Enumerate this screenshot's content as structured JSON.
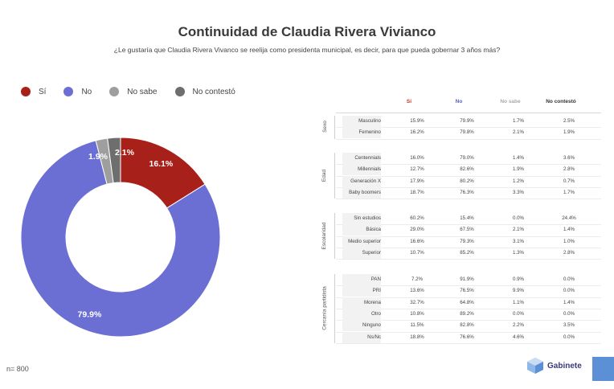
{
  "title": "Continuidad de Claudia Rivera Vivianco",
  "subtitle": "¿Le gustaría que Claudia Rivera Vivanco se reelija como presidenta municipal, es decir, para que pueda gobernar 3 años más?",
  "n_label": "n= 800",
  "logo_text": "Gabinete",
  "chart_data": [
    {
      "type": "pie",
      "donut": true,
      "legend_position": "top-left",
      "categories": [
        "Sí",
        "No",
        "No sabe",
        "No contestó"
      ],
      "values": [
        16.1,
        79.9,
        1.9,
        2.1
      ],
      "labels": [
        "16.1%",
        "79.9%",
        "1.9%",
        "2.1%"
      ],
      "colors": [
        "#a8201a",
        "#6b6fd4",
        "#9e9e9e",
        "#6e6e6e"
      ]
    },
    {
      "type": "table",
      "columns": [
        "Sí",
        "No",
        "No sabe",
        "No contestó"
      ],
      "column_colors": [
        "#c0392b",
        "#5b5fc7",
        "#aaaaaa",
        "#333333"
      ],
      "groups": [
        {
          "label": "Sexo",
          "rows": [
            {
              "name": "Masculino",
              "values": [
                "15.9%",
                "79.9%",
                "1.7%",
                "2.5%"
              ]
            },
            {
              "name": "Femenino",
              "values": [
                "16.2%",
                "79.8%",
                "2.1%",
                "1.9%"
              ]
            }
          ]
        },
        {
          "label": "Edad",
          "rows": [
            {
              "name": "Centennials",
              "values": [
                "16.0%",
                "79.0%",
                "1.4%",
                "3.6%"
              ]
            },
            {
              "name": "Millennials",
              "values": [
                "12.7%",
                "82.6%",
                "1.9%",
                "2.8%"
              ]
            },
            {
              "name": "Generación X",
              "values": [
                "17.9%",
                "80.2%",
                "1.2%",
                "0.7%"
              ]
            },
            {
              "name": "Baby boomers",
              "values": [
                "18.7%",
                "76.3%",
                "3.3%",
                "1.7%"
              ]
            }
          ]
        },
        {
          "label": "Escolaridad",
          "rows": [
            {
              "name": "Sin estudios",
              "values": [
                "60.2%",
                "15.4%",
                "0.0%",
                "24.4%"
              ]
            },
            {
              "name": "Básica",
              "values": [
                "29.0%",
                "67.5%",
                "2.1%",
                "1.4%"
              ]
            },
            {
              "name": "Medio superior",
              "values": [
                "16.6%",
                "79.3%",
                "3.1%",
                "1.0%"
              ]
            },
            {
              "name": "Superior",
              "values": [
                "10.7%",
                "85.2%",
                "1.3%",
                "2.8%"
              ]
            }
          ]
        },
        {
          "label": "Cercanía partidista",
          "rows": [
            {
              "name": "PAN",
              "values": [
                "7.2%",
                "91.9%",
                "0.9%",
                "0.0%"
              ]
            },
            {
              "name": "PRI",
              "values": [
                "13.6%",
                "76.5%",
                "9.9%",
                "0.0%"
              ]
            },
            {
              "name": "Morena",
              "values": [
                "32.7%",
                "64.8%",
                "1.1%",
                "1.4%"
              ]
            },
            {
              "name": "Otro",
              "values": [
                "10.8%",
                "89.2%",
                "0.0%",
                "0.0%"
              ]
            },
            {
              "name": "Ninguno",
              "values": [
                "11.5%",
                "82.8%",
                "2.2%",
                "3.5%"
              ]
            },
            {
              "name": "Ns/Nc",
              "values": [
                "18.8%",
                "76.6%",
                "4.6%",
                "0.0%"
              ]
            }
          ]
        }
      ]
    }
  ]
}
